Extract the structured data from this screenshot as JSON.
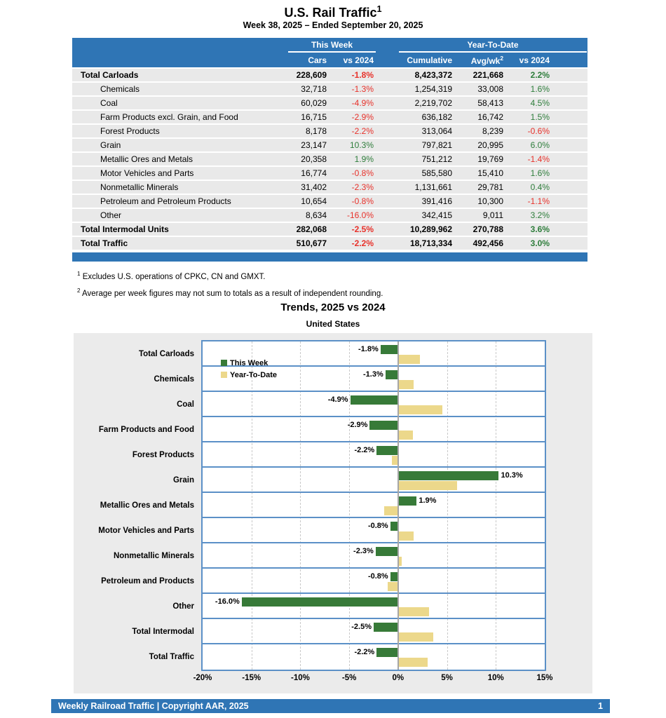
{
  "page": {
    "title": "U.S. Rail Traffic",
    "title_sup": "1",
    "subtitle": "Week 38, 2025 – Ended September 20, 2025"
  },
  "table": {
    "group_cols": {
      "this_week": "This Week",
      "ytd": "Year-To-Date"
    },
    "columns": {
      "cars": "Cars",
      "vs_week": "vs 2024",
      "cumulative": "Cumulative",
      "avg_wk": "Avg/wk",
      "avg_wk_sup": "2",
      "vs_ytd": "vs 2024"
    },
    "rows": [
      {
        "label": "Total Carloads",
        "level": "total",
        "cars": "228,609",
        "vs_week": "-1.8%",
        "cumulative": "8,423,372",
        "avg_wk": "221,668",
        "vs_ytd": "2.2%"
      },
      {
        "label": "Chemicals",
        "level": "sub",
        "cars": "32,718",
        "vs_week": "-1.3%",
        "cumulative": "1,254,319",
        "avg_wk": "33,008",
        "vs_ytd": "1.6%"
      },
      {
        "label": "Coal",
        "level": "sub",
        "cars": "60,029",
        "vs_week": "-4.9%",
        "cumulative": "2,219,702",
        "avg_wk": "58,413",
        "vs_ytd": "4.5%"
      },
      {
        "label": "Farm Products excl. Grain, and Food",
        "level": "sub",
        "cars": "16,715",
        "vs_week": "-2.9%",
        "cumulative": "636,182",
        "avg_wk": "16,742",
        "vs_ytd": "1.5%"
      },
      {
        "label": "Forest Products",
        "level": "sub",
        "cars": "8,178",
        "vs_week": "-2.2%",
        "cumulative": "313,064",
        "avg_wk": "8,239",
        "vs_ytd": "-0.6%"
      },
      {
        "label": "Grain",
        "level": "sub",
        "cars": "23,147",
        "vs_week": "10.3%",
        "cumulative": "797,821",
        "avg_wk": "20,995",
        "vs_ytd": "6.0%"
      },
      {
        "label": "Metallic Ores and Metals",
        "level": "sub",
        "cars": "20,358",
        "vs_week": "1.9%",
        "cumulative": "751,212",
        "avg_wk": "19,769",
        "vs_ytd": "-1.4%"
      },
      {
        "label": "Motor Vehicles and Parts",
        "level": "sub",
        "cars": "16,774",
        "vs_week": "-0.8%",
        "cumulative": "585,580",
        "avg_wk": "15,410",
        "vs_ytd": "1.6%"
      },
      {
        "label": "Nonmetallic Minerals",
        "level": "sub",
        "cars": "31,402",
        "vs_week": "-2.3%",
        "cumulative": "1,131,661",
        "avg_wk": "29,781",
        "vs_ytd": "0.4%"
      },
      {
        "label": "Petroleum and Petroleum Products",
        "level": "sub",
        "cars": "10,654",
        "vs_week": "-0.8%",
        "cumulative": "391,416",
        "avg_wk": "10,300",
        "vs_ytd": "-1.1%"
      },
      {
        "label": "Other",
        "level": "sub",
        "cars": "8,634",
        "vs_week": "-16.0%",
        "cumulative": "342,415",
        "avg_wk": "9,011",
        "vs_ytd": "3.2%"
      },
      {
        "label": "Total Intermodal Units",
        "level": "total",
        "cars": "282,068",
        "vs_week": "-2.5%",
        "cumulative": "10,289,962",
        "avg_wk": "270,788",
        "vs_ytd": "3.6%"
      },
      {
        "label": "Total Traffic",
        "level": "total",
        "cars": "510,677",
        "vs_week": "-2.2%",
        "cumulative": "18,713,334",
        "avg_wk": "492,456",
        "vs_ytd": "3.0%"
      }
    ]
  },
  "footnotes": [
    {
      "sup": "1",
      "text": "Excludes U.S. operations of CPKC, CN and GMXT."
    },
    {
      "sup": "2",
      "text": "Average per week figures may not sum to totals as a result of independent rounding."
    }
  ],
  "chart_data": {
    "type": "bar",
    "orientation": "horizontal",
    "title": "Trends, 2025 vs 2024",
    "subtitle": "United States",
    "categories": [
      "Total Carloads",
      "Chemicals",
      "Coal",
      "Farm Products and Food",
      "Forest Products",
      "Grain",
      "Metallic Ores and Metals",
      "Motor Vehicles and Parts",
      "Nonmetallic Minerals",
      "Petroleum and Products",
      "Other",
      "Total Intermodal",
      "Total Traffic"
    ],
    "series": [
      {
        "name": "This Week",
        "color": "#377a38",
        "values": [
          -1.8,
          -1.3,
          -4.9,
          -2.9,
          -2.2,
          10.3,
          1.9,
          -0.8,
          -2.3,
          -0.8,
          -16.0,
          -2.5,
          -2.2
        ]
      },
      {
        "name": "Year-To-Date",
        "color": "#ecd88b",
        "values": [
          2.2,
          1.6,
          4.5,
          1.5,
          -0.6,
          6.0,
          -1.4,
          1.6,
          0.4,
          -1.1,
          3.2,
          3.6,
          3.0
        ]
      }
    ],
    "bar_labels": [
      "-1.8%",
      "-1.3%",
      "-4.9%",
      "-2.9%",
      "-2.2%",
      "10.3%",
      "1.9%",
      "-0.8%",
      "-2.3%",
      "-0.8%",
      "-16.0%",
      "-2.5%",
      "-2.2%"
    ],
    "xlim": [
      -20,
      15
    ],
    "xticks": [
      -20,
      -15,
      -10,
      -5,
      0,
      5,
      10,
      15
    ],
    "xtick_labels": [
      "-20%",
      "-15%",
      "-10%",
      "-5%",
      "0%",
      "5%",
      "10%",
      "15%"
    ],
    "legend_position": "top-left-inside",
    "grid": "vertical-dashed"
  },
  "colors": {
    "header_blue": "#2f75b5",
    "row_gray": "#e9e9e9",
    "pos_green": "#2e7d3b",
    "neg_red": "#e8312a",
    "chart_green": "#377a38",
    "chart_tan": "#ecd88b",
    "chart_line_blue": "#5b90c7",
    "chart_bg": "#ebebeb"
  },
  "footer": {
    "left": "Weekly Railroad Traffic | Copyright AAR, 2025",
    "page": "1"
  }
}
